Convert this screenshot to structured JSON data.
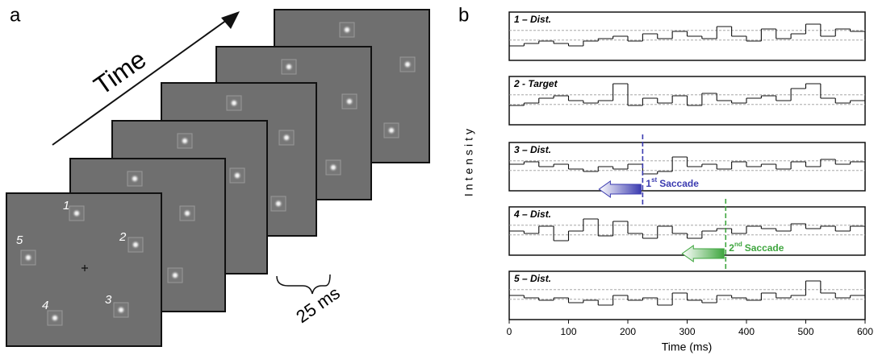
{
  "panel_a": {
    "label": "a",
    "time_label": "Time",
    "interval_label": "25 ms",
    "locations": [
      "1",
      "2",
      "3",
      "4",
      "5"
    ]
  },
  "chart_data": {
    "type": "step",
    "label": "b",
    "ylabel": "Intensity",
    "xlabel": "Time (ms)",
    "xlim": [
      0,
      600
    ],
    "xticks": [
      0,
      100,
      200,
      300,
      400,
      500,
      600
    ],
    "ylim": [
      0,
      1
    ],
    "thresholds": [
      0.42,
      0.62
    ],
    "x": [
      0,
      25,
      50,
      75,
      100,
      125,
      150,
      175,
      200,
      225,
      250,
      275,
      300,
      325,
      350,
      375,
      400,
      425,
      450,
      475,
      500,
      525,
      550,
      575
    ],
    "series": [
      {
        "name": "1 – Dist.",
        "color": "#111111",
        "values": [
          0.3,
          0.35,
          0.4,
          0.35,
          0.3,
          0.4,
          0.45,
          0.5,
          0.4,
          0.55,
          0.45,
          0.6,
          0.5,
          0.45,
          0.7,
          0.5,
          0.4,
          0.65,
          0.45,
          0.55,
          0.75,
          0.5,
          0.65,
          0.6
        ]
      },
      {
        "name": "2 - Target",
        "color": "#111111",
        "values": [
          0.4,
          0.45,
          0.55,
          0.6,
          0.5,
          0.45,
          0.5,
          0.85,
          0.4,
          0.55,
          0.45,
          0.6,
          0.4,
          0.65,
          0.5,
          0.45,
          0.55,
          0.6,
          0.5,
          0.75,
          0.85,
          0.55,
          0.45,
          0.5
        ]
      },
      {
        "name": "3 – Dist.",
        "color": "#111111",
        "values": [
          0.55,
          0.6,
          0.5,
          0.55,
          0.45,
          0.4,
          0.5,
          0.45,
          0.55,
          0.35,
          0.4,
          0.7,
          0.5,
          0.55,
          0.45,
          0.6,
          0.5,
          0.55,
          0.45,
          0.6,
          0.5,
          0.65,
          0.55,
          0.6
        ]
      },
      {
        "name": "4 – Dist.",
        "color": "#111111",
        "values": [
          0.5,
          0.45,
          0.6,
          0.3,
          0.5,
          0.75,
          0.4,
          0.7,
          0.45,
          0.35,
          0.6,
          0.45,
          0.35,
          0.5,
          0.55,
          0.45,
          0.6,
          0.55,
          0.5,
          0.65,
          0.55,
          0.6,
          0.5,
          0.6
        ]
      },
      {
        "name": "5 – Dist.",
        "color": "#111111",
        "values": [
          0.5,
          0.45,
          0.4,
          0.45,
          0.35,
          0.4,
          0.3,
          0.5,
          0.4,
          0.45,
          0.3,
          0.55,
          0.4,
          0.35,
          0.5,
          0.45,
          0.4,
          0.55,
          0.45,
          0.5,
          0.8,
          0.55,
          0.45,
          0.5
        ]
      }
    ],
    "saccades": [
      {
        "x": 225,
        "panel": 2,
        "number": "1",
        "suffix": "st",
        "label": "Saccade",
        "color": "#3b3bb0"
      },
      {
        "x": 365,
        "panel": 3,
        "number": "2",
        "suffix": "nd",
        "label": "Saccade",
        "color": "#3fa63f"
      }
    ]
  }
}
